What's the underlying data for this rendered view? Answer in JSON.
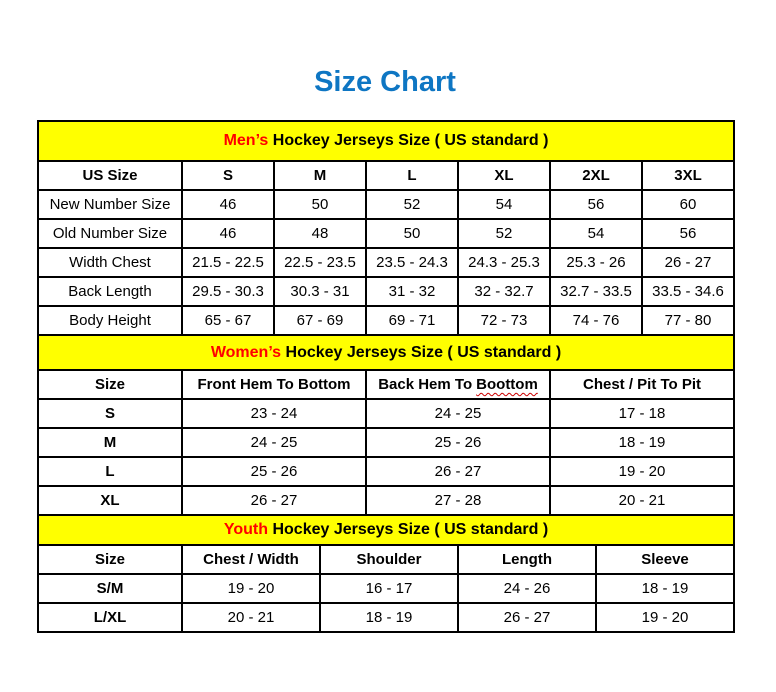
{
  "title": "Size Chart",
  "colors": {
    "title_blue": "#0e76c3",
    "band_yellow": "#ffff00",
    "accent_red": "#ff0000",
    "border_black": "#000000"
  },
  "sections": [
    {
      "name": "mens",
      "heading_accent": "Men’s",
      "heading_rest": " Hockey Jerseys Size ( US standard )",
      "columns": [
        "US Size",
        "S",
        "M",
        "L",
        "XL",
        "2XL",
        "3XL"
      ],
      "rows": [
        [
          "New Number Size",
          "46",
          "50",
          "52",
          "54",
          "56",
          "60"
        ],
        [
          "Old Number Size",
          "46",
          "48",
          "50",
          "52",
          "54",
          "56"
        ],
        [
          "Width Chest",
          "21.5 - 22.5",
          "22.5 - 23.5",
          "23.5 - 24.3",
          "24.3 - 25.3",
          "25.3 - 26",
          "26 - 27"
        ],
        [
          "Back Length",
          "29.5 - 30.3",
          "30.3 - 31",
          "31 - 32",
          "32 - 32.7",
          "32.7 - 33.5",
          "33.5 - 34.6"
        ],
        [
          "Body Height",
          "65 - 67",
          "67 - 69",
          "69 - 71",
          "72 - 73",
          "74 - 76",
          "77 - 80"
        ]
      ]
    },
    {
      "name": "womens",
      "heading_accent": "Women’s",
      "heading_rest": " Hockey Jerseys Size ( US standard )",
      "columns": [
        "Size",
        "Front Hem To Bottom",
        "Back Hem To Boottom",
        "Chest / Pit To Pit"
      ],
      "back_hem_prefix": "Back Hem To",
      "back_hem_misspelled": "Boottom",
      "rows": [
        [
          "S",
          "23 - 24",
          "24 - 25",
          "17 - 18"
        ],
        [
          "M",
          "24 - 25",
          "25 - 26",
          "18 - 19"
        ],
        [
          "L",
          "25 - 26",
          "26 - 27",
          "19 - 20"
        ],
        [
          "XL",
          "26 - 27",
          "27 - 28",
          "20 - 21"
        ]
      ]
    },
    {
      "name": "youth",
      "heading_accent": "Youth",
      "heading_rest": " Hockey Jerseys Size ( US standard )",
      "columns": [
        "Size",
        "Chest / Width",
        "Shoulder",
        "Length",
        "Sleeve"
      ],
      "rows": [
        [
          "S/M",
          "19 - 20",
          "16 - 17",
          "24 - 26",
          "18 - 19"
        ],
        [
          "L/XL",
          "20 - 21",
          "18 - 19",
          "26 - 27",
          "19 - 20"
        ]
      ]
    }
  ]
}
